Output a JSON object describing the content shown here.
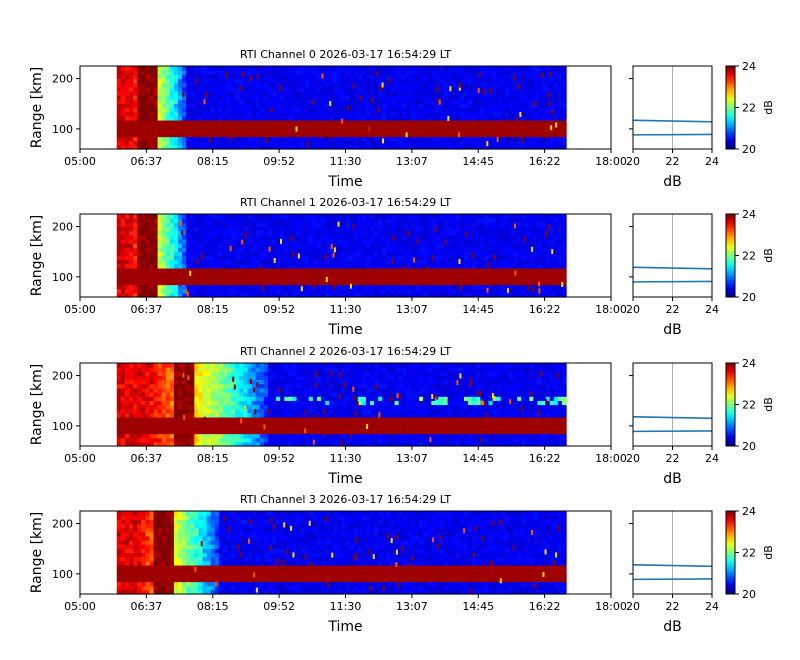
{
  "chart_data": {
    "type": "heatmap",
    "colormap": "jet",
    "x_ticks": [
      "05:00",
      "06:37",
      "08:15",
      "09:52",
      "11:30",
      "13:07",
      "14:45",
      "16:22",
      "18:00"
    ],
    "x_range_hours": [
      5.0,
      18.0
    ],
    "data_time_range_hours": [
      5.9,
      16.9
    ],
    "y_range_km": [
      60,
      225
    ],
    "y_ticks": [
      100,
      200
    ],
    "xlabel": "Time",
    "ylabel": "Range [km]",
    "profile_xlabel": "dB",
    "profile_xticks": [
      "20",
      "22",
      "24"
    ],
    "profile_xlim": [
      20,
      24
    ],
    "colorbar_label": "dB",
    "colorbar_ticks": [
      "20",
      "22",
      "24"
    ],
    "clim": [
      20,
      24
    ],
    "echo_band_km": [
      88,
      115
    ],
    "panels": [
      {
        "title": "RTI Channel 0 2026-03-17 16:54:29 LT",
        "warm_until_hours": 7.6,
        "profile_lines_km": [
          117,
          88
        ]
      },
      {
        "title": "RTI Channel 1 2026-03-17 16:54:29 LT",
        "warm_until_hours": 7.6,
        "profile_lines_km": [
          119,
          90
        ]
      },
      {
        "title": "RTI Channel 2 2026-03-17 16:54:29 LT",
        "warm_until_hours": 9.6,
        "profile_lines_km": [
          118,
          89
        ]
      },
      {
        "title": "RTI Channel 3 2026-03-17 16:54:29 LT",
        "warm_until_hours": 8.4,
        "profile_lines_km": [
          118,
          89
        ]
      }
    ]
  }
}
